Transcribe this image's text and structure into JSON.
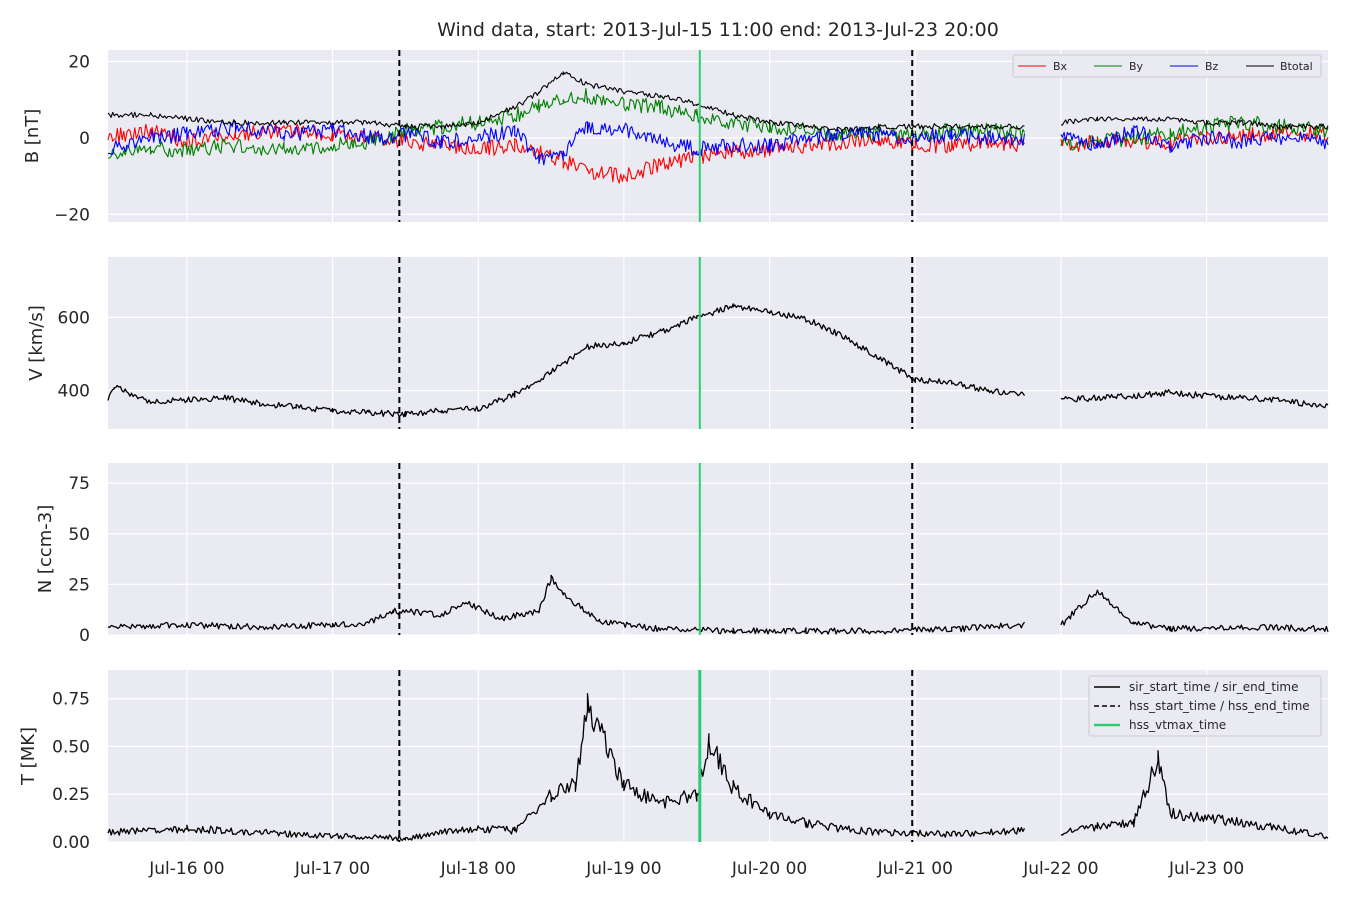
{
  "title": "Wind data, start: 2013-Jul-15 11:00  end: 2013-Jul-23 20:00",
  "colors": {
    "panel_bg": "#eaeaf2",
    "grid": "#ffffff",
    "text": "#262626",
    "bx": "#ff0000",
    "by": "#008000",
    "bz": "#0000ff",
    "btotal": "#000000",
    "vtmax": "#2ecc71"
  },
  "x_ticks": [
    "Jul-16 00",
    "Jul-17 00",
    "Jul-18 00",
    "Jul-19 00",
    "Jul-20 00",
    "Jul-21 00",
    "Jul-22 00",
    "Jul-23 00"
  ],
  "legend_b": [
    "Bx",
    "By",
    "Bz",
    "Btotal"
  ],
  "legend_events": [
    "sir_start_time / sir_end_time",
    "hss_start_time / hss_end_time",
    "hss_vtmax_time"
  ],
  "chart_data": [
    {
      "type": "line",
      "ylabel": "B [nT]",
      "ylim": [
        -22,
        23
      ],
      "yticks": [
        {
          "v": 20,
          "label": "20"
        },
        {
          "v": 0,
          "label": "0"
        },
        {
          "v": -20,
          "label": "−20"
        }
      ],
      "x_range": [
        "2013-07-15T11:00",
        "2013-07-23T20:00"
      ],
      "x": [
        "2013-07-15T11:00",
        "2013-07-15T18:00",
        "2013-07-16T00:00",
        "2013-07-16T08:00",
        "2013-07-16T16:00",
        "2013-07-17T00:00",
        "2013-07-17T07:00",
        "2013-07-17T12:00",
        "2013-07-17T18:00",
        "2013-07-18T00:00",
        "2013-07-18T06:00",
        "2013-07-18T10:00",
        "2013-07-18T14:00",
        "2013-07-18T18:00",
        "2013-07-19T00:00",
        "2013-07-19T06:00",
        "2013-07-19T12:00",
        "2013-07-19T18:00",
        "2013-07-20T00:00",
        "2013-07-20T06:00",
        "2013-07-20T12:00",
        "2013-07-20T18:00",
        "2013-07-21T00:00",
        "2013-07-21T06:00",
        "2013-07-21T12:00",
        "2013-07-21T18:00",
        "2013-07-21T20:00",
        "2013-07-22T00:00",
        "2013-07-22T06:00",
        "2013-07-22T12:00",
        "2013-07-22T18:00",
        "2013-07-23T00:00",
        "2013-07-23T06:00",
        "2013-07-23T12:00",
        "2013-07-23T20:00"
      ],
      "series": [
        {
          "name": "Bx",
          "color": "#ff0000",
          "values": [
            0,
            2,
            -1,
            1,
            2,
            1,
            0,
            -1,
            -2,
            -3,
            -2,
            -4,
            -6,
            -9,
            -10,
            -7,
            -5,
            -4,
            -3,
            -2,
            -1,
            0,
            -2,
            -2,
            -1,
            -2,
            null,
            -2,
            -1,
            -1,
            -1,
            0,
            1,
            1,
            1
          ]
        },
        {
          "name": "By",
          "color": "#008000",
          "values": [
            -4,
            -3,
            -3,
            -2,
            -3,
            -2,
            -1,
            2,
            3,
            4,
            6,
            8,
            10,
            11,
            9,
            8,
            6,
            4,
            3,
            2,
            1,
            1,
            1,
            2,
            2,
            1,
            null,
            -2,
            -1,
            0,
            1,
            3,
            4,
            3,
            2
          ]
        },
        {
          "name": "Bz",
          "color": "#0000ff",
          "values": [
            -3,
            0,
            1,
            3,
            1,
            2,
            0,
            1,
            -1,
            0,
            2,
            -6,
            -4,
            3,
            2,
            -1,
            -3,
            -2,
            -2,
            0,
            1,
            1,
            0,
            1,
            0,
            0,
            null,
            1,
            -2,
            2,
            -2,
            0,
            -1,
            0,
            -1
          ]
        },
        {
          "name": "Btotal",
          "color": "#000000",
          "values": [
            6,
            6,
            5,
            4,
            4,
            4,
            4,
            3,
            3,
            4,
            8,
            12,
            17,
            14,
            12,
            11,
            9,
            6,
            4,
            3,
            2,
            3,
            3,
            3,
            3,
            3,
            null,
            4,
            5,
            5,
            5,
            4,
            4,
            3,
            3
          ]
        }
      ]
    },
    {
      "type": "line",
      "ylabel": "V [km/s]",
      "ylim": [
        295,
        765
      ],
      "yticks": [
        {
          "v": 600,
          "label": "600"
        },
        {
          "v": 400,
          "label": "400"
        }
      ],
      "x_range": [
        "2013-07-15T11:00",
        "2013-07-23T20:00"
      ],
      "x": [
        "2013-07-15T11:00",
        "2013-07-15T12:00",
        "2013-07-15T18:00",
        "2013-07-16T00:00",
        "2013-07-16T06:00",
        "2013-07-16T12:00",
        "2013-07-16T18:00",
        "2013-07-17T00:00",
        "2013-07-17T06:00",
        "2013-07-17T12:00",
        "2013-07-17T18:00",
        "2013-07-18T00:00",
        "2013-07-18T06:00",
        "2013-07-18T12:00",
        "2013-07-18T18:00",
        "2013-07-19T00:00",
        "2013-07-19T06:00",
        "2013-07-19T12:00",
        "2013-07-19T18:00",
        "2013-07-20T00:00",
        "2013-07-20T06:00",
        "2013-07-20T12:00",
        "2013-07-20T18:00",
        "2013-07-21T00:00",
        "2013-07-21T06:00",
        "2013-07-21T12:00",
        "2013-07-21T18:00",
        "2013-07-21T20:00",
        "2013-07-22T00:00",
        "2013-07-22T06:00",
        "2013-07-22T12:00",
        "2013-07-22T18:00",
        "2013-07-23T00:00",
        "2013-07-23T06:00",
        "2013-07-23T12:00",
        "2013-07-23T20:00"
      ],
      "series": [
        {
          "name": "V",
          "color": "#000000",
          "values": [
            380,
            410,
            370,
            375,
            380,
            365,
            355,
            345,
            340,
            335,
            345,
            350,
            390,
            450,
            520,
            530,
            560,
            600,
            630,
            615,
            595,
            550,
            490,
            430,
            420,
            400,
            390,
            null,
            375,
            380,
            385,
            395,
            385,
            380,
            375,
            355
          ]
        }
      ]
    },
    {
      "type": "line",
      "ylabel": "N [ccm-3]",
      "ylim": [
        0,
        85
      ],
      "yticks": [
        {
          "v": 75,
          "label": "75"
        },
        {
          "v": 50,
          "label": "50"
        },
        {
          "v": 25,
          "label": "25"
        },
        {
          "v": 0,
          "label": "0"
        }
      ],
      "x_range": [
        "2013-07-15T11:00",
        "2013-07-23T20:00"
      ],
      "x": [
        "2013-07-15T11:00",
        "2013-07-16T00:00",
        "2013-07-16T12:00",
        "2013-07-17T00:00",
        "2013-07-17T06:00",
        "2013-07-17T10:00",
        "2013-07-17T18:00",
        "2013-07-17T22:00",
        "2013-07-18T04:00",
        "2013-07-18T10:00",
        "2013-07-18T12:00",
        "2013-07-18T14:00",
        "2013-07-18T20:00",
        "2013-07-19T06:00",
        "2013-07-19T18:00",
        "2013-07-20T06:00",
        "2013-07-20T18:00",
        "2013-07-21T06:00",
        "2013-07-21T18:00",
        "2013-07-21T20:00",
        "2013-07-22T00:00",
        "2013-07-22T06:00",
        "2013-07-22T12:00",
        "2013-07-22T18:00",
        "2013-07-23T06:00",
        "2013-07-23T20:00"
      ],
      "series": [
        {
          "name": "N",
          "color": "#000000",
          "values": [
            4,
            5,
            4,
            5,
            6,
            12,
            10,
            16,
            8,
            12,
            28,
            20,
            7,
            3,
            2,
            2,
            2,
            3,
            5,
            null,
            5,
            22,
            6,
            3,
            4,
            3
          ]
        }
      ]
    },
    {
      "type": "line",
      "ylabel": "T [MK]",
      "ylim": [
        0,
        0.9
      ],
      "yticks": [
        {
          "v": 0.75,
          "label": "0.75"
        },
        {
          "v": 0.5,
          "label": "0.50"
        },
        {
          "v": 0.25,
          "label": "0.25"
        },
        {
          "v": 0,
          "label": "0.00"
        }
      ],
      "x_range": [
        "2013-07-15T11:00",
        "2013-07-23T20:00"
      ],
      "x": [
        "2013-07-15T11:00",
        "2013-07-16T00:00",
        "2013-07-16T12:00",
        "2013-07-17T00:00",
        "2013-07-17T12:00",
        "2013-07-17T18:00",
        "2013-07-18T00:00",
        "2013-07-18T06:00",
        "2013-07-18T12:00",
        "2013-07-18T16:00",
        "2013-07-18T18:00",
        "2013-07-19T00:00",
        "2013-07-19T06:00",
        "2013-07-19T12:00",
        "2013-07-19T14:00",
        "2013-07-19T18:00",
        "2013-07-20T00:00",
        "2013-07-20T06:00",
        "2013-07-20T12:00",
        "2013-07-20T18:00",
        "2013-07-21T06:00",
        "2013-07-21T18:00",
        "2013-07-21T20:00",
        "2013-07-22T00:00",
        "2013-07-22T06:00",
        "2013-07-22T12:00",
        "2013-07-22T16:00",
        "2013-07-22T18:00",
        "2013-07-23T06:00",
        "2013-07-23T20:00"
      ],
      "series": [
        {
          "name": "T",
          "color": "#000000",
          "values": [
            0.05,
            0.07,
            0.05,
            0.03,
            0.02,
            0.05,
            0.07,
            0.06,
            0.25,
            0.3,
            0.71,
            0.3,
            0.2,
            0.25,
            0.53,
            0.28,
            0.15,
            0.1,
            0.07,
            0.05,
            0.04,
            0.06,
            null,
            0.05,
            0.08,
            0.1,
            0.44,
            0.15,
            0.1,
            0.03
          ]
        }
      ]
    }
  ],
  "events": {
    "hss_start": "2013-07-17T11:00",
    "hss_vtmax": "2013-07-19T12:30",
    "hss_end": "2013-07-20T23:30"
  }
}
